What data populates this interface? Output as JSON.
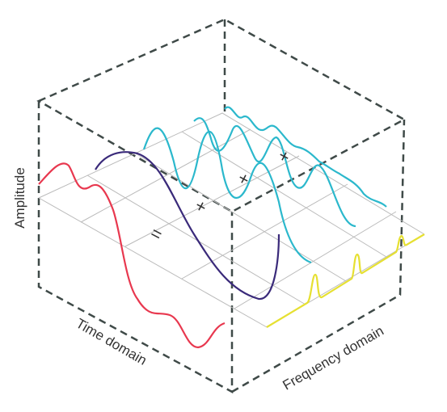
{
  "labels": {
    "amplitude": "Amplitude",
    "time_domain": "Time domain",
    "frequency_domain": "Frequency domain"
  },
  "operators": [
    "=",
    "+",
    "+",
    "+"
  ]
}
